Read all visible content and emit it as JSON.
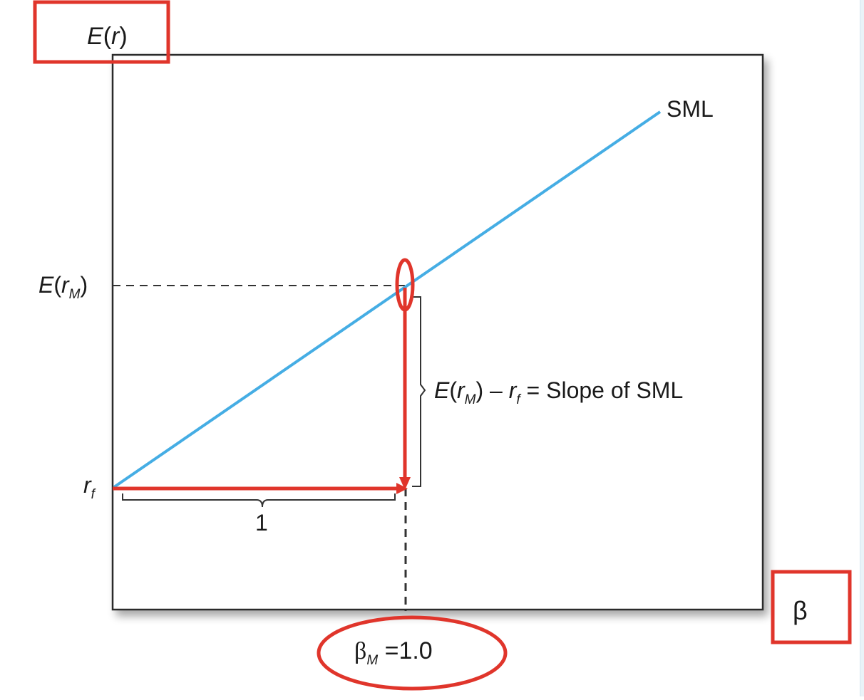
{
  "diagram": {
    "y_axis_label": {
      "e": "E",
      "open": "(",
      "r": "r",
      "close": ")"
    },
    "x_axis_label": "β",
    "line_label": "SML",
    "market_return_label": {
      "e": "E",
      "open": "(",
      "r": "r",
      "sub": "M",
      "close": ")"
    },
    "risk_free_label": {
      "r": "r",
      "sub": "f"
    },
    "run_label": "1",
    "slope_annotation": {
      "e": "E",
      "open": "(",
      "r": "r",
      "sub_m": "M",
      "close": ")",
      "minus": " – ",
      "r2": "r",
      "sub_f": "f",
      "rest": " = Slope of SML"
    },
    "market_beta_label": {
      "beta": "β",
      "sub": "M",
      "value": " =1.0"
    }
  },
  "colors": {
    "sml_line": "#45ade4",
    "highlight": "#e0352b",
    "frame": "#2b2b2b",
    "guide": "#333333"
  }
}
